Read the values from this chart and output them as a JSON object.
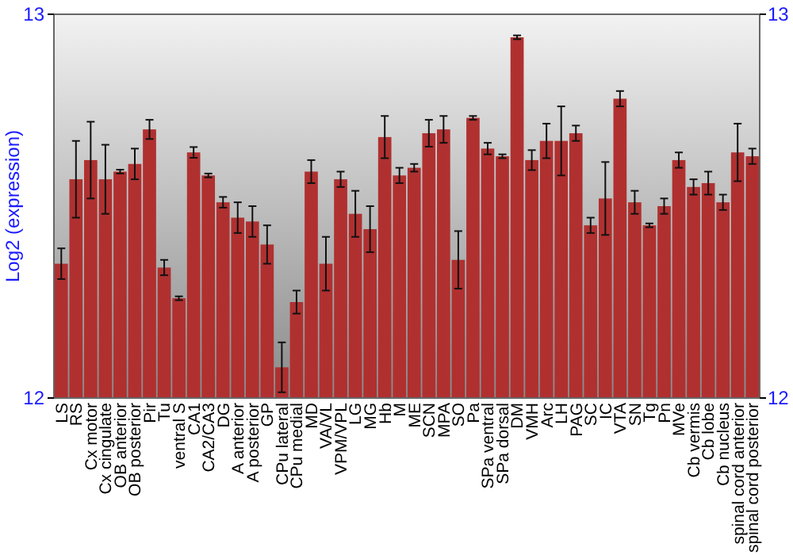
{
  "chart_data": {
    "type": "bar",
    "ylabel": "Log2 (expression)",
    "categories": [
      "LS",
      "RS",
      "Cx motor",
      "Cx cingulate",
      "OB anterior",
      "OB posterior",
      "Pir",
      "Tu",
      "ventral S",
      "CA1",
      "CA2/CA3",
      "DG",
      "A anterior",
      "A posterior",
      "GP",
      "CPu lateral",
      "CPu medial",
      "MD",
      "VA/VL",
      "VPM/VPL",
      "LG",
      "MG",
      "Hb",
      "M",
      "ME",
      "SCN",
      "MPA",
      "SO",
      "Pa",
      "SPa ventral",
      "SPa dorsal",
      "DM",
      "VMH",
      "Arc",
      "LH",
      "PAG",
      "SC",
      "IC",
      "VTA",
      "SN",
      "Tg",
      "Pn",
      "MVe",
      "Cb vermis",
      "Cb lobe",
      "Cb nucleus",
      "spinal cord anterior",
      "spinal cord posterior"
    ],
    "values": [
      12.35,
      12.57,
      12.62,
      12.57,
      12.59,
      12.61,
      12.7,
      12.34,
      12.26,
      12.64,
      12.58,
      12.51,
      12.47,
      12.46,
      12.4,
      12.08,
      12.25,
      12.59,
      12.35,
      12.57,
      12.48,
      12.44,
      12.68,
      12.58,
      12.6,
      12.69,
      12.7,
      12.36,
      12.73,
      12.65,
      12.63,
      12.94,
      12.62,
      12.67,
      12.67,
      12.69,
      12.45,
      12.52,
      12.78,
      12.51,
      12.45,
      12.5,
      12.62,
      12.55,
      12.56,
      12.51,
      12.64,
      12.63
    ],
    "errors": [
      0.04,
      0.1,
      0.1,
      0.09,
      0.005,
      0.04,
      0.025,
      0.02,
      0.005,
      0.014,
      0.005,
      0.014,
      0.04,
      0.04,
      0.05,
      0.065,
      0.03,
      0.03,
      0.07,
      0.02,
      0.06,
      0.06,
      0.055,
      0.02,
      0.01,
      0.035,
      0.035,
      0.075,
      0.005,
      0.015,
      0.005,
      0.005,
      0.026,
      0.045,
      0.09,
      0.02,
      0.02,
      0.095,
      0.02,
      0.03,
      0.005,
      0.02,
      0.02,
      0.02,
      0.03,
      0.02,
      0.075,
      0.02
    ],
    "color": "#b03030",
    "ylim": [
      12,
      13
    ],
    "yticks": [
      12,
      13
    ],
    "y2lim": [
      12,
      13
    ],
    "y2ticks": [
      12,
      13
    ]
  }
}
